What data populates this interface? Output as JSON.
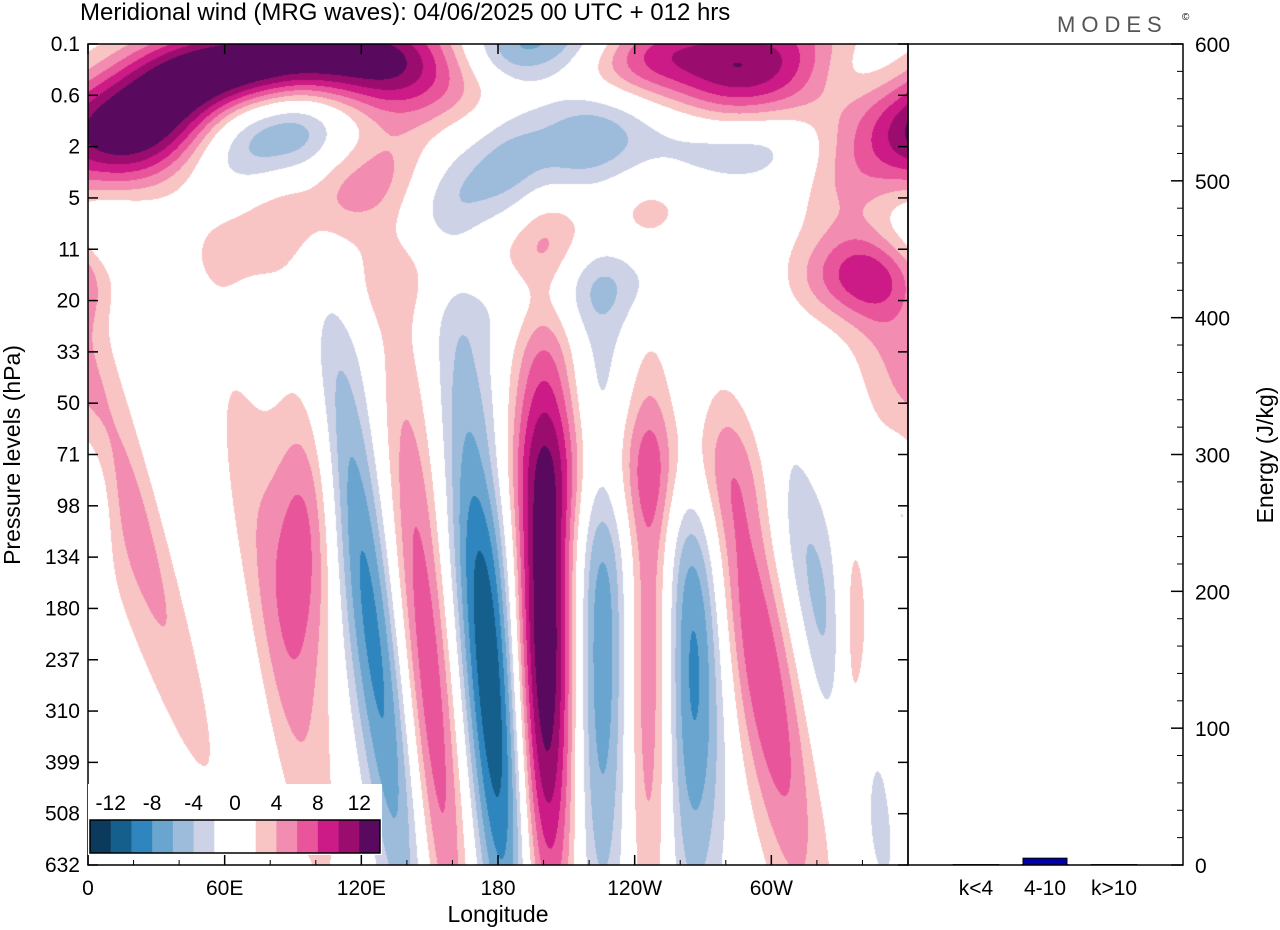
{
  "chart_data": [
    {
      "type": "heatmap",
      "title": "Meridional wind (MRG waves):  04/06/2025  00 UTC  + 012 hrs",
      "brand": "MODES",
      "brand_mark": "©",
      "xlabel": "Longitude",
      "ylabel": "Pressure levels (hPa)",
      "x_ticks": [
        "0",
        "60E",
        "120E",
        "180",
        "120W",
        "60W"
      ],
      "x_tick_degrees": [
        0,
        60,
        120,
        180,
        240,
        300
      ],
      "xlim": [
        0,
        360
      ],
      "y_levels": [
        "0.1",
        "0.6",
        "2",
        "5",
        "11",
        "20",
        "33",
        "50",
        "71",
        "98",
        "134",
        "180",
        "237",
        "310",
        "399",
        "508",
        "632"
      ],
      "colorbar": {
        "tick_labels": [
          "-12",
          "-8",
          "-4",
          "0",
          "4",
          "8",
          "12"
        ],
        "tick_values": [
          -12,
          -8,
          -4,
          0,
          4,
          8,
          12
        ],
        "levels": [
          -14,
          -12,
          -10,
          -8,
          -6,
          -4,
          -2,
          0,
          2,
          4,
          6,
          8,
          10,
          12,
          14
        ],
        "colors": [
          "#0b3a5c",
          "#155f8d",
          "#2f86be",
          "#6aa5cf",
          "#9dbbdb",
          "#cdd2e6",
          "#ffffff",
          "#ffffff",
          "#f9c4c4",
          "#f28cb0",
          "#e9559b",
          "#cc1a86",
          "#9a0d6e",
          "#5a0a5e"
        ]
      },
      "features": [
        {
          "lon": 30,
          "level": 1.5,
          "sign": 1,
          "amp": 13,
          "lon_width": 22,
          "lev_width": 0.9,
          "tilt": -6
        },
        {
          "lon": 60,
          "level": 0.6,
          "sign": 1,
          "amp": 9,
          "lon_width": 30,
          "lev_width": 0.6,
          "tilt": -10
        },
        {
          "lon": 95,
          "level": 0.2,
          "sign": 1,
          "amp": 13,
          "lon_width": 45,
          "lev_width": 0.6,
          "tilt": -14
        },
        {
          "lon": 145,
          "level": 0.6,
          "sign": 1,
          "amp": 11,
          "lon_width": 35,
          "lev_width": 0.7,
          "tilt": -14
        },
        {
          "lon": 85,
          "level": 1.6,
          "sign": -1,
          "amp": 8,
          "lon_width": 30,
          "lev_width": 0.9,
          "tilt": -16
        },
        {
          "lon": 55,
          "level": 0.5,
          "sign": -1,
          "amp": 5,
          "lon_width": 40,
          "lev_width": 0.7,
          "tilt": -12
        },
        {
          "lon": 190,
          "level": 0.1,
          "sign": -1,
          "amp": 14,
          "lon_width": 30,
          "lev_width": 0.6,
          "tilt": -10
        },
        {
          "lon": 185,
          "level": 2.3,
          "sign": -1,
          "amp": 9,
          "lon_width": 38,
          "lev_width": 1.1,
          "tilt": -22
        },
        {
          "lon": 125,
          "level": 2.7,
          "sign": 1,
          "amp": 8,
          "lon_width": 35,
          "lev_width": 1.0,
          "tilt": -24
        },
        {
          "lon": 185,
          "level": 4.3,
          "sign": 1,
          "amp": 5,
          "lon_width": 50,
          "lev_width": 0.8,
          "tilt": -26
        },
        {
          "lon": 215,
          "level": 4.6,
          "sign": -1,
          "amp": 6,
          "lon_width": 40,
          "lev_width": 0.7,
          "tilt": -20
        },
        {
          "lon": 255,
          "level": 2.8,
          "sign": 1,
          "amp": 5,
          "lon_width": 40,
          "lev_width": 0.7,
          "tilt": -10
        },
        {
          "lon": 242,
          "level": 0.2,
          "sign": 1,
          "amp": 10,
          "lon_width": 30,
          "lev_width": 0.6,
          "tilt": -10
        },
        {
          "lon": 295,
          "level": 0.7,
          "sign": 1,
          "amp": 15,
          "lon_width": 28,
          "lev_width": 0.8,
          "tilt": -10
        },
        {
          "lon": 285,
          "level": 2.0,
          "sign": -1,
          "amp": 8,
          "lon_width": 35,
          "lev_width": 0.9,
          "tilt": -14
        },
        {
          "lon": 330,
          "level": 0.5,
          "sign": -1,
          "amp": 6,
          "lon_width": 30,
          "lev_width": 0.6,
          "tilt": -10
        },
        {
          "lon": 355,
          "level": 1.8,
          "sign": 1,
          "amp": 10,
          "lon_width": 22,
          "lev_width": 1.1,
          "tilt": 0
        },
        {
          "lon": 340,
          "level": 4.5,
          "sign": 1,
          "amp": 7,
          "lon_width": 22,
          "lev_width": 0.6,
          "tilt": 0
        },
        {
          "lon": 360,
          "level": 3.2,
          "sign": -1,
          "amp": 5,
          "lon_width": 20,
          "lev_width": 0.9,
          "tilt": 0
        },
        {
          "lon": 25,
          "level": 9.5,
          "sign": 1,
          "amp": 6,
          "lon_width": 15,
          "lev_width": 5.0,
          "tilt": 8
        },
        {
          "lon": 55,
          "level": 11.5,
          "sign": -1,
          "amp": 5,
          "lon_width": 12,
          "lev_width": 4.0,
          "tilt": 6
        },
        {
          "lon": 83,
          "level": 11.5,
          "sign": 1,
          "amp": 4,
          "lon_width": 12,
          "lev_width": 4.0,
          "tilt": 4
        },
        {
          "lon": 95,
          "level": 9.5,
          "sign": 1,
          "amp": 6,
          "lon_width": 10,
          "lev_width": 2.0,
          "tilt": 0
        },
        {
          "lon": 125,
          "level": 11.5,
          "sign": -1,
          "amp": 9,
          "lon_width": 9,
          "lev_width": 4.5,
          "tilt": 3
        },
        {
          "lon": 150,
          "level": 12.5,
          "sign": 1,
          "amp": 8,
          "lon_width": 9,
          "lev_width": 4.5,
          "tilt": 2
        },
        {
          "lon": 178,
          "level": 12.8,
          "sign": -1,
          "amp": 13,
          "lon_width": 10,
          "lev_width": 4.5,
          "tilt": 2
        },
        {
          "lon": 200,
          "level": 11.8,
          "sign": 1,
          "amp": 15,
          "lon_width": 10,
          "lev_width": 4.5,
          "tilt": 0
        },
        {
          "lon": 225,
          "level": 11.8,
          "sign": -1,
          "amp": 8,
          "lon_width": 9,
          "lev_width": 4.0,
          "tilt": 0
        },
        {
          "lon": 247,
          "level": 12.0,
          "sign": 1,
          "amp": 7,
          "lon_width": 8,
          "lev_width": 4.0,
          "tilt": 0
        },
        {
          "lon": 265,
          "level": 12.0,
          "sign": -1,
          "amp": 9,
          "lon_width": 10,
          "lev_width": 3.5,
          "tilt": 0
        },
        {
          "lon": 295,
          "level": 12.0,
          "sign": 1,
          "amp": 8,
          "lon_width": 11,
          "lev_width": 3.5,
          "tilt": 4
        },
        {
          "lon": 325,
          "level": 11.5,
          "sign": -1,
          "amp": 5,
          "lon_width": 10,
          "lev_width": 3.5,
          "tilt": 5
        },
        {
          "lon": 335,
          "level": 12.5,
          "sign": 1,
          "amp": 6,
          "lon_width": 6,
          "lev_width": 2.0,
          "tilt": 0
        },
        {
          "lon": 245,
          "level": 8.2,
          "sign": 1,
          "amp": 4,
          "lon_width": 40,
          "lev_width": 1.0,
          "tilt": 0
        },
        {
          "lon": 360,
          "level": 8.8,
          "sign": -1,
          "amp": 4,
          "lon_width": 8,
          "lev_width": 1.0,
          "tilt": 0
        }
      ]
    },
    {
      "type": "bar",
      "categories": [
        "k<4",
        "4-10",
        "k>10"
      ],
      "values": [
        0,
        5,
        0
      ],
      "ylabel": "Energy (J/kg)",
      "ylim": [
        0,
        600
      ],
      "y_ticks": [
        0,
        100,
        200,
        300,
        400,
        500,
        600
      ],
      "bar_color": "#0000aa"
    }
  ]
}
